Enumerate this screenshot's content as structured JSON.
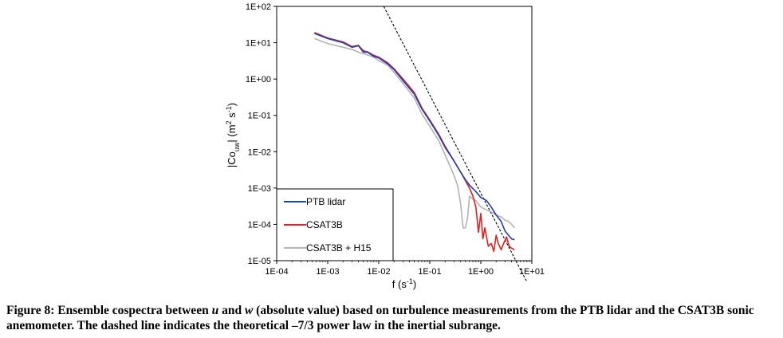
{
  "chart_data": {
    "type": "line",
    "xscale": "log",
    "yscale": "log",
    "xlim": [
      0.0001,
      10
    ],
    "ylim": [
      1e-05,
      100
    ],
    "xlabel": "f (s",
    "xlabel_sup": "-1",
    "xlabel_end": ")",
    "ylabel_parts": {
      "a": "|Co",
      "sub": "uw",
      "b": "| (m",
      "sup1": "2",
      "c": " s",
      "sup2": "-1",
      "d": ")"
    },
    "xticks": [
      "1E-04",
      "1E-03",
      "1E-02",
      "1E-01",
      "1E+00",
      "1E+01"
    ],
    "yticks": [
      "1E-05",
      "1E-04",
      "1E-03",
      "1E-02",
      "1E-01",
      "1E+00",
      "1E+01",
      "1E+02"
    ],
    "legend_position": "bottom-left",
    "series": [
      {
        "name": "PTB lidar",
        "color": "#1f3fae",
        "x": [
          0.00055,
          0.001,
          0.002,
          0.003,
          0.004,
          0.005,
          0.006,
          0.008,
          0.01,
          0.015,
          0.02,
          0.03,
          0.05,
          0.07,
          0.1,
          0.15,
          0.2,
          0.3,
          0.4,
          0.5,
          0.6,
          0.8,
          1.0,
          1.3,
          1.6,
          2.0,
          2.5,
          3.0,
          3.5,
          4.0,
          4.6
        ],
        "y": [
          18,
          13,
          10,
          7.5,
          8.3,
          5.5,
          5.5,
          4.2,
          3.8,
          2.6,
          1.8,
          0.9,
          0.38,
          0.15,
          0.07,
          0.028,
          0.013,
          0.0055,
          0.0028,
          0.0017,
          0.0012,
          0.0008,
          0.00055,
          0.00045,
          0.0003,
          0.00018,
          0.00012,
          6.5e-05,
          5e-05,
          4e-05,
          3.8e-05
        ]
      },
      {
        "name": "CSAT3B",
        "color": "#e02020",
        "x": [
          0.00055,
          0.001,
          0.002,
          0.003,
          0.004,
          0.005,
          0.006,
          0.008,
          0.01,
          0.015,
          0.02,
          0.03,
          0.05,
          0.07,
          0.1,
          0.15,
          0.2,
          0.3,
          0.4,
          0.5,
          0.6,
          0.7,
          0.8,
          0.9,
          1.0,
          1.1,
          1.2,
          1.4,
          1.6,
          1.8,
          2.0,
          2.2,
          2.5,
          2.8,
          3.2,
          3.6,
          4.0,
          4.6
        ],
        "y": [
          19,
          13.5,
          10.5,
          7.8,
          8.5,
          6.0,
          5.6,
          4.5,
          4.0,
          2.8,
          1.9,
          1.0,
          0.42,
          0.16,
          0.075,
          0.03,
          0.014,
          0.0055,
          0.0028,
          0.0016,
          0.001,
          0.0006,
          0.0003,
          6e-05,
          0.0002,
          4e-05,
          8e-05,
          2.5e-05,
          3e-05,
          1.8e-05,
          5e-05,
          3e-05,
          2e-05,
          3e-05,
          4.5e-05,
          2.5e-05,
          2.2e-05,
          2e-05
        ]
      },
      {
        "name": "CSAT3B + H15",
        "color": "#b3b3b3",
        "x": [
          0.00055,
          0.001,
          0.002,
          0.003,
          0.004,
          0.005,
          0.006,
          0.008,
          0.01,
          0.015,
          0.02,
          0.03,
          0.05,
          0.07,
          0.1,
          0.15,
          0.2,
          0.25,
          0.3,
          0.35,
          0.4,
          0.45,
          0.5,
          0.55,
          0.6,
          0.7,
          0.8,
          1.0,
          1.3,
          1.6,
          2.0,
          2.5,
          3.0,
          3.5,
          4.0,
          4.6
        ],
        "y": [
          13,
          9.5,
          7.5,
          6.5,
          5.5,
          5.0,
          4.6,
          4.0,
          3.2,
          2.4,
          1.5,
          0.75,
          0.3,
          0.11,
          0.05,
          0.02,
          0.008,
          0.004,
          0.0022,
          0.0012,
          0.0004,
          8e-05,
          8e-05,
          0.00015,
          0.0006,
          0.0005,
          0.00045,
          0.0003,
          0.00025,
          0.00022,
          0.00018,
          0.00016,
          0.00013,
          0.00012,
          0.0001,
          8e-05
        ]
      }
    ],
    "reference_line": {
      "name": "-7/3 power law",
      "style": "dashed",
      "x": [
        0.0125,
        8.0
      ],
      "y": [
        100,
        2.6e-06
      ]
    }
  },
  "caption": {
    "prefix": "Figure 8: Ensemble cospectra between ",
    "var1": "u",
    "and": " and ",
    "var2": "w",
    "rest": " (absolute value) based on turbulence measurements from the PTB lidar and the CSAT3B sonic anemometer. The dashed line indicates the theoretical –7/3 power law in the inertial subrange."
  }
}
